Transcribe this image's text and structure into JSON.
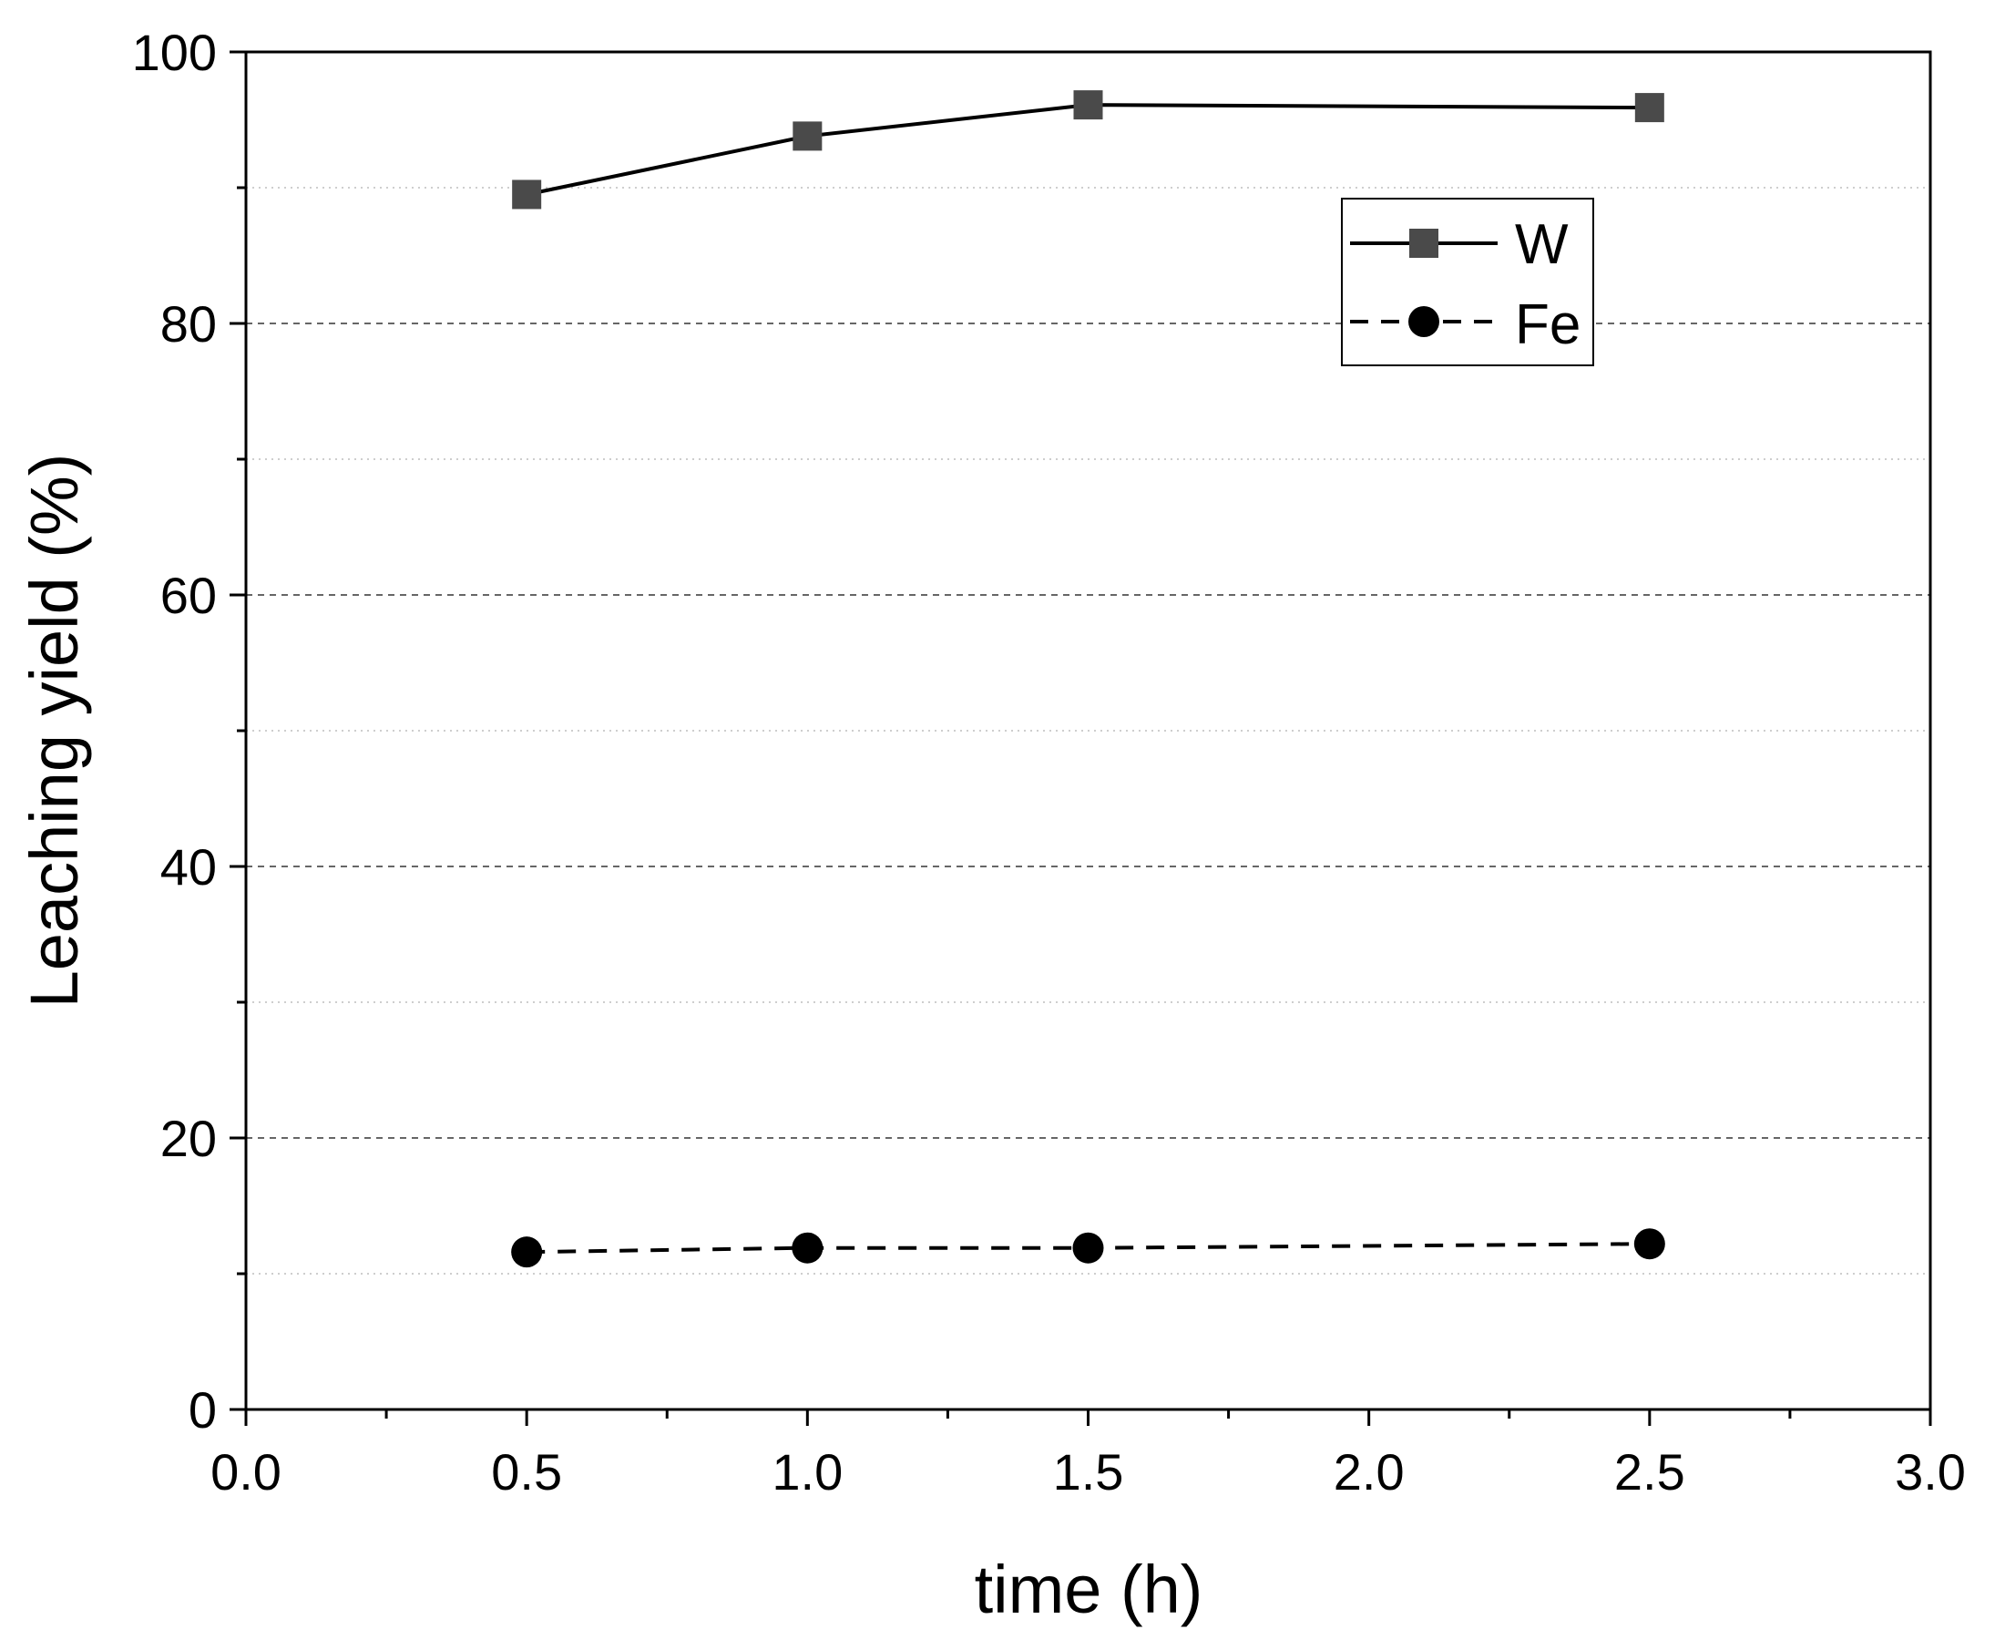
{
  "chart_data": {
    "type": "line",
    "title": "",
    "xlabel": "time (h)",
    "ylabel": "Leaching yield (%)",
    "xlim": [
      0.0,
      3.0
    ],
    "ylim": [
      0,
      100
    ],
    "x_ticks": [
      0.0,
      0.5,
      1.0,
      1.5,
      2.0,
      2.5,
      3.0
    ],
    "x_tick_labels": [
      "0.0",
      "0.5",
      "1.0",
      "1.5",
      "2.0",
      "2.5",
      "3.0"
    ],
    "x_minor_ticks": [
      0.25,
      0.75,
      1.25,
      1.75,
      2.25,
      2.75
    ],
    "y_ticks": [
      0,
      20,
      40,
      60,
      80,
      100
    ],
    "y_tick_labels": [
      "0",
      "20",
      "40",
      "60",
      "80",
      "100"
    ],
    "y_minor_ticks": [
      10,
      30,
      50,
      70,
      90
    ],
    "grid": true,
    "legend_position": "top-right",
    "series": [
      {
        "name": "W",
        "x": [
          0.5,
          1.0,
          1.5,
          2.5
        ],
        "values": [
          89.5,
          93.8,
          96.1,
          95.9
        ],
        "marker": "square",
        "line_style": "solid",
        "color": "#4a4a4a"
      },
      {
        "name": "Fe",
        "x": [
          0.5,
          1.0,
          1.5,
          2.5
        ],
        "values": [
          11.6,
          11.9,
          11.9,
          12.2
        ],
        "marker": "circle",
        "line_style": "dashed",
        "color": "#000000"
      }
    ]
  }
}
